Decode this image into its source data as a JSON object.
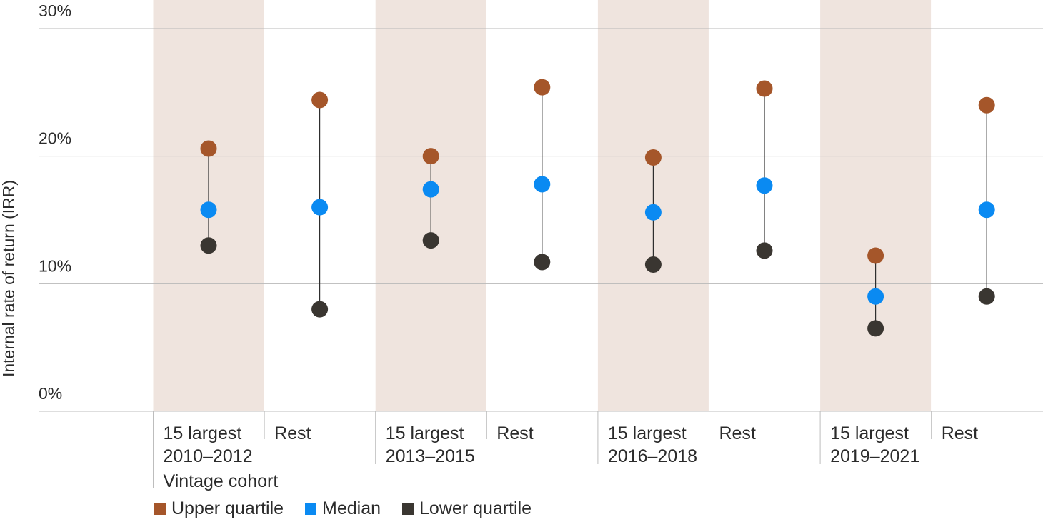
{
  "chart_data": {
    "type": "dot-range",
    "ylabel": "Internal rate of return (IRR)",
    "yticks": [
      "0%",
      "10%",
      "20%",
      "30%"
    ],
    "ylim": [
      0,
      30
    ],
    "grid": true,
    "cohort_label": "Vintage cohort",
    "groups": [
      {
        "top": "15 largest",
        "bottom": "2010–2012",
        "shaded": true
      },
      {
        "top": "Rest",
        "bottom": "",
        "shaded": false
      },
      {
        "top": "15 largest",
        "bottom": "2013–2015",
        "shaded": true
      },
      {
        "top": "Rest",
        "bottom": "",
        "shaded": false
      },
      {
        "top": "15 largest",
        "bottom": "2016–2018",
        "shaded": true
      },
      {
        "top": "Rest",
        "bottom": "",
        "shaded": false
      },
      {
        "top": "15 largest",
        "bottom": "2019–2021",
        "shaded": true
      },
      {
        "top": "Rest",
        "bottom": "",
        "shaded": false
      }
    ],
    "series": [
      {
        "name": "Upper quartile",
        "color": "#A5562A",
        "values": [
          20.6,
          24.4,
          20.0,
          25.4,
          19.9,
          25.3,
          12.2,
          24.0
        ]
      },
      {
        "name": "Median",
        "color": "#0A8AF2",
        "values": [
          15.8,
          16.0,
          17.4,
          17.8,
          15.6,
          17.7,
          9.0,
          15.8
        ]
      },
      {
        "name": "Lower quartile",
        "color": "#3A3631",
        "values": [
          13.0,
          8.0,
          13.4,
          11.7,
          11.5,
          12.6,
          6.5,
          9.0
        ]
      }
    ],
    "legend_position": "bottom-left"
  }
}
